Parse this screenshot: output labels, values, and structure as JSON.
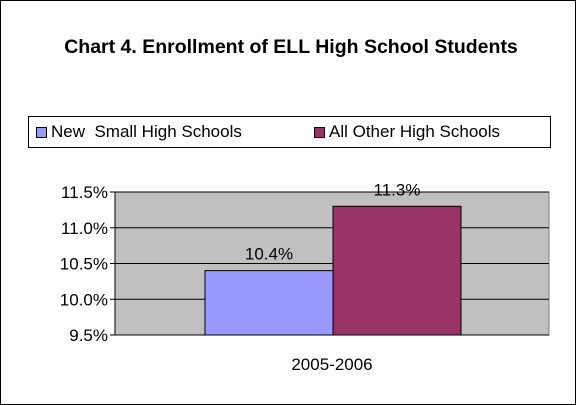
{
  "chart_data": {
    "type": "bar",
    "title": "Chart 4. Enrollment of ELL High School Students",
    "xlabel": "",
    "ylabel": "",
    "categories": [
      "2005-2006"
    ],
    "series": [
      {
        "name": "New  Small High Schools",
        "values": [
          10.4
        ],
        "label": "10.4%",
        "color": "#9999FF"
      },
      {
        "name": "All Other High Schools",
        "values": [
          11.3
        ],
        "label": "11.3%",
        "color": "#993366"
      }
    ],
    "ylim": [
      9.5,
      11.5
    ],
    "yticks": [
      9.5,
      10.0,
      10.5,
      11.0,
      11.5
    ],
    "ytick_labels": [
      "9.5%",
      "10.0%",
      "10.5%",
      "11.0%",
      "11.5%"
    ],
    "grid": true,
    "legend_position": "top",
    "plot_background": "#C0C0C0"
  }
}
